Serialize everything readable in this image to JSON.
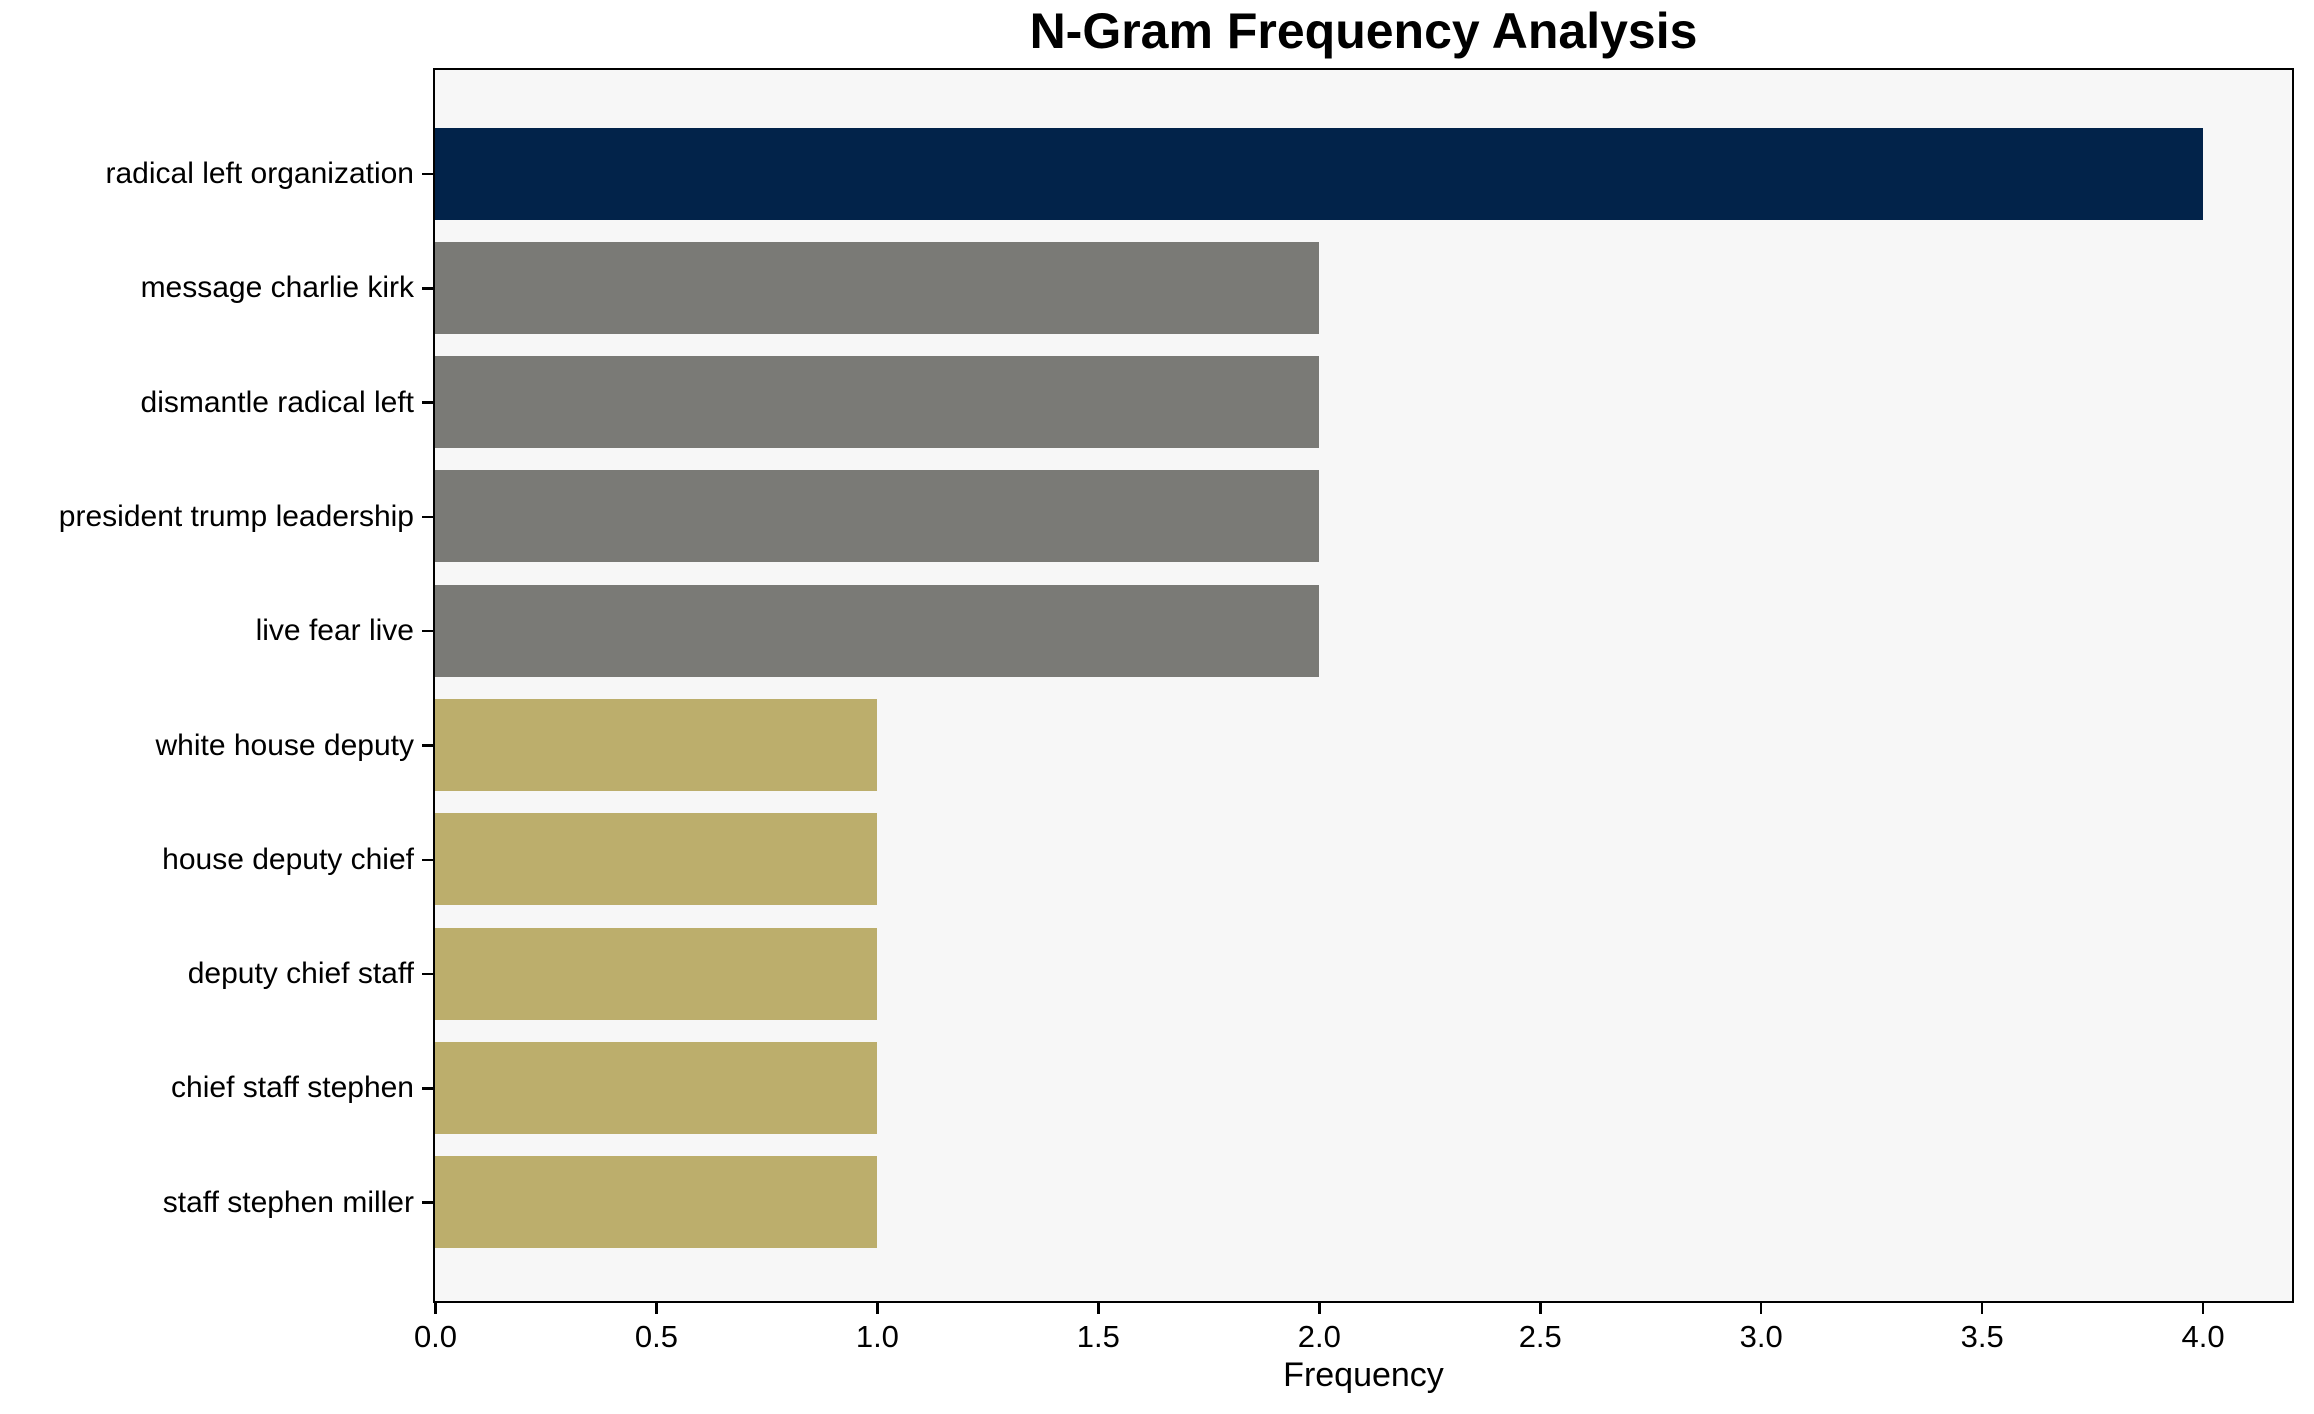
{
  "chart_data": {
    "type": "bar",
    "orientation": "horizontal",
    "title": "N-Gram Frequency Analysis",
    "xlabel": "Frequency",
    "ylabel": "",
    "categories": [
      "radical left organization",
      "message charlie kirk",
      "dismantle radical left",
      "president trump leadership",
      "live fear live",
      "white house deputy",
      "house deputy chief",
      "deputy chief staff",
      "chief staff stephen",
      "staff stephen miller"
    ],
    "values": [
      4,
      2,
      2,
      2,
      2,
      1,
      1,
      1,
      1,
      1
    ],
    "bar_colors": [
      "#02234a",
      "#7a7a76",
      "#7a7a76",
      "#7a7a76",
      "#7a7a76",
      "#bcae6c",
      "#bcae6c",
      "#bcae6c",
      "#bcae6c",
      "#bcae6c"
    ],
    "xlim": [
      0,
      4.2
    ],
    "xticks": [
      0.0,
      0.5,
      1.0,
      1.5,
      2.0,
      2.5,
      3.0,
      3.5,
      4.0
    ],
    "xtick_labels": [
      "0.0",
      "0.5",
      "1.0",
      "1.5",
      "2.0",
      "2.5",
      "3.0",
      "3.5",
      "4.0"
    ],
    "grid": false,
    "legend": "none",
    "colors": {
      "navy": "#02234a",
      "gray": "#7a7a76",
      "khaki": "#bcae6c",
      "plot_background": "#f7f7f7",
      "spine": "#000000"
    }
  }
}
